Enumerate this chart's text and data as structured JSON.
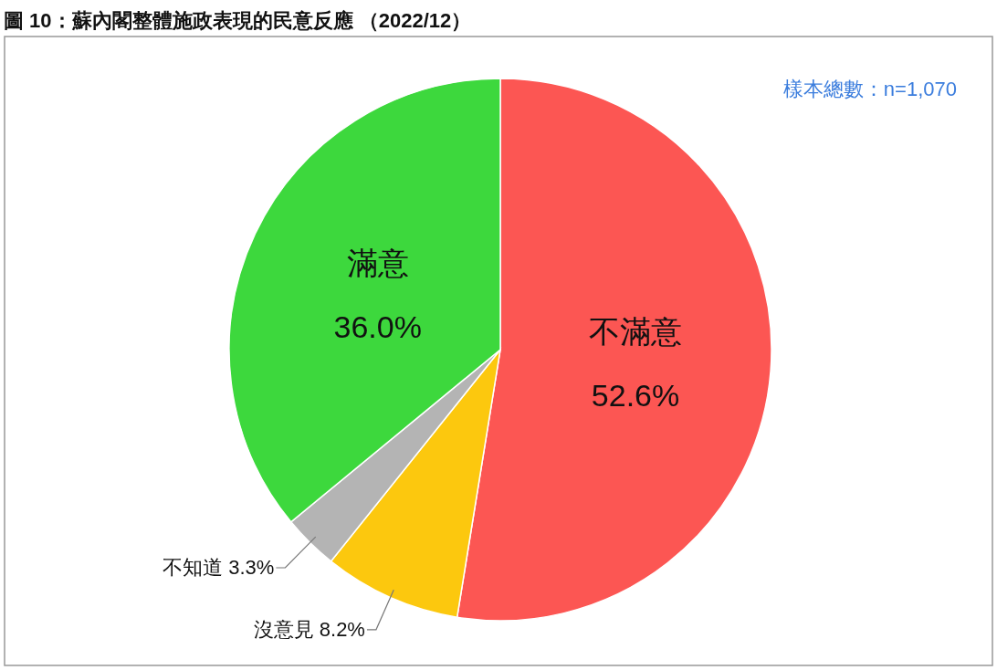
{
  "chart_data": {
    "type": "pie",
    "title": "圖 10：蘇內閣整體施政表現的民意反應 （2022/12）",
    "categories": [
      "不滿意",
      "沒意見",
      "不知道",
      "滿意"
    ],
    "values": [
      52.6,
      8.2,
      3.3,
      36.0
    ],
    "colors": [
      "#fc5653",
      "#fcc80e",
      "#b4b4b4",
      "#3dd83d"
    ],
    "value_labels": [
      "52.6%",
      "8.2%",
      "3.3%",
      "36.0%"
    ],
    "annotations": [
      "樣本總數：n=1,070"
    ]
  }
}
